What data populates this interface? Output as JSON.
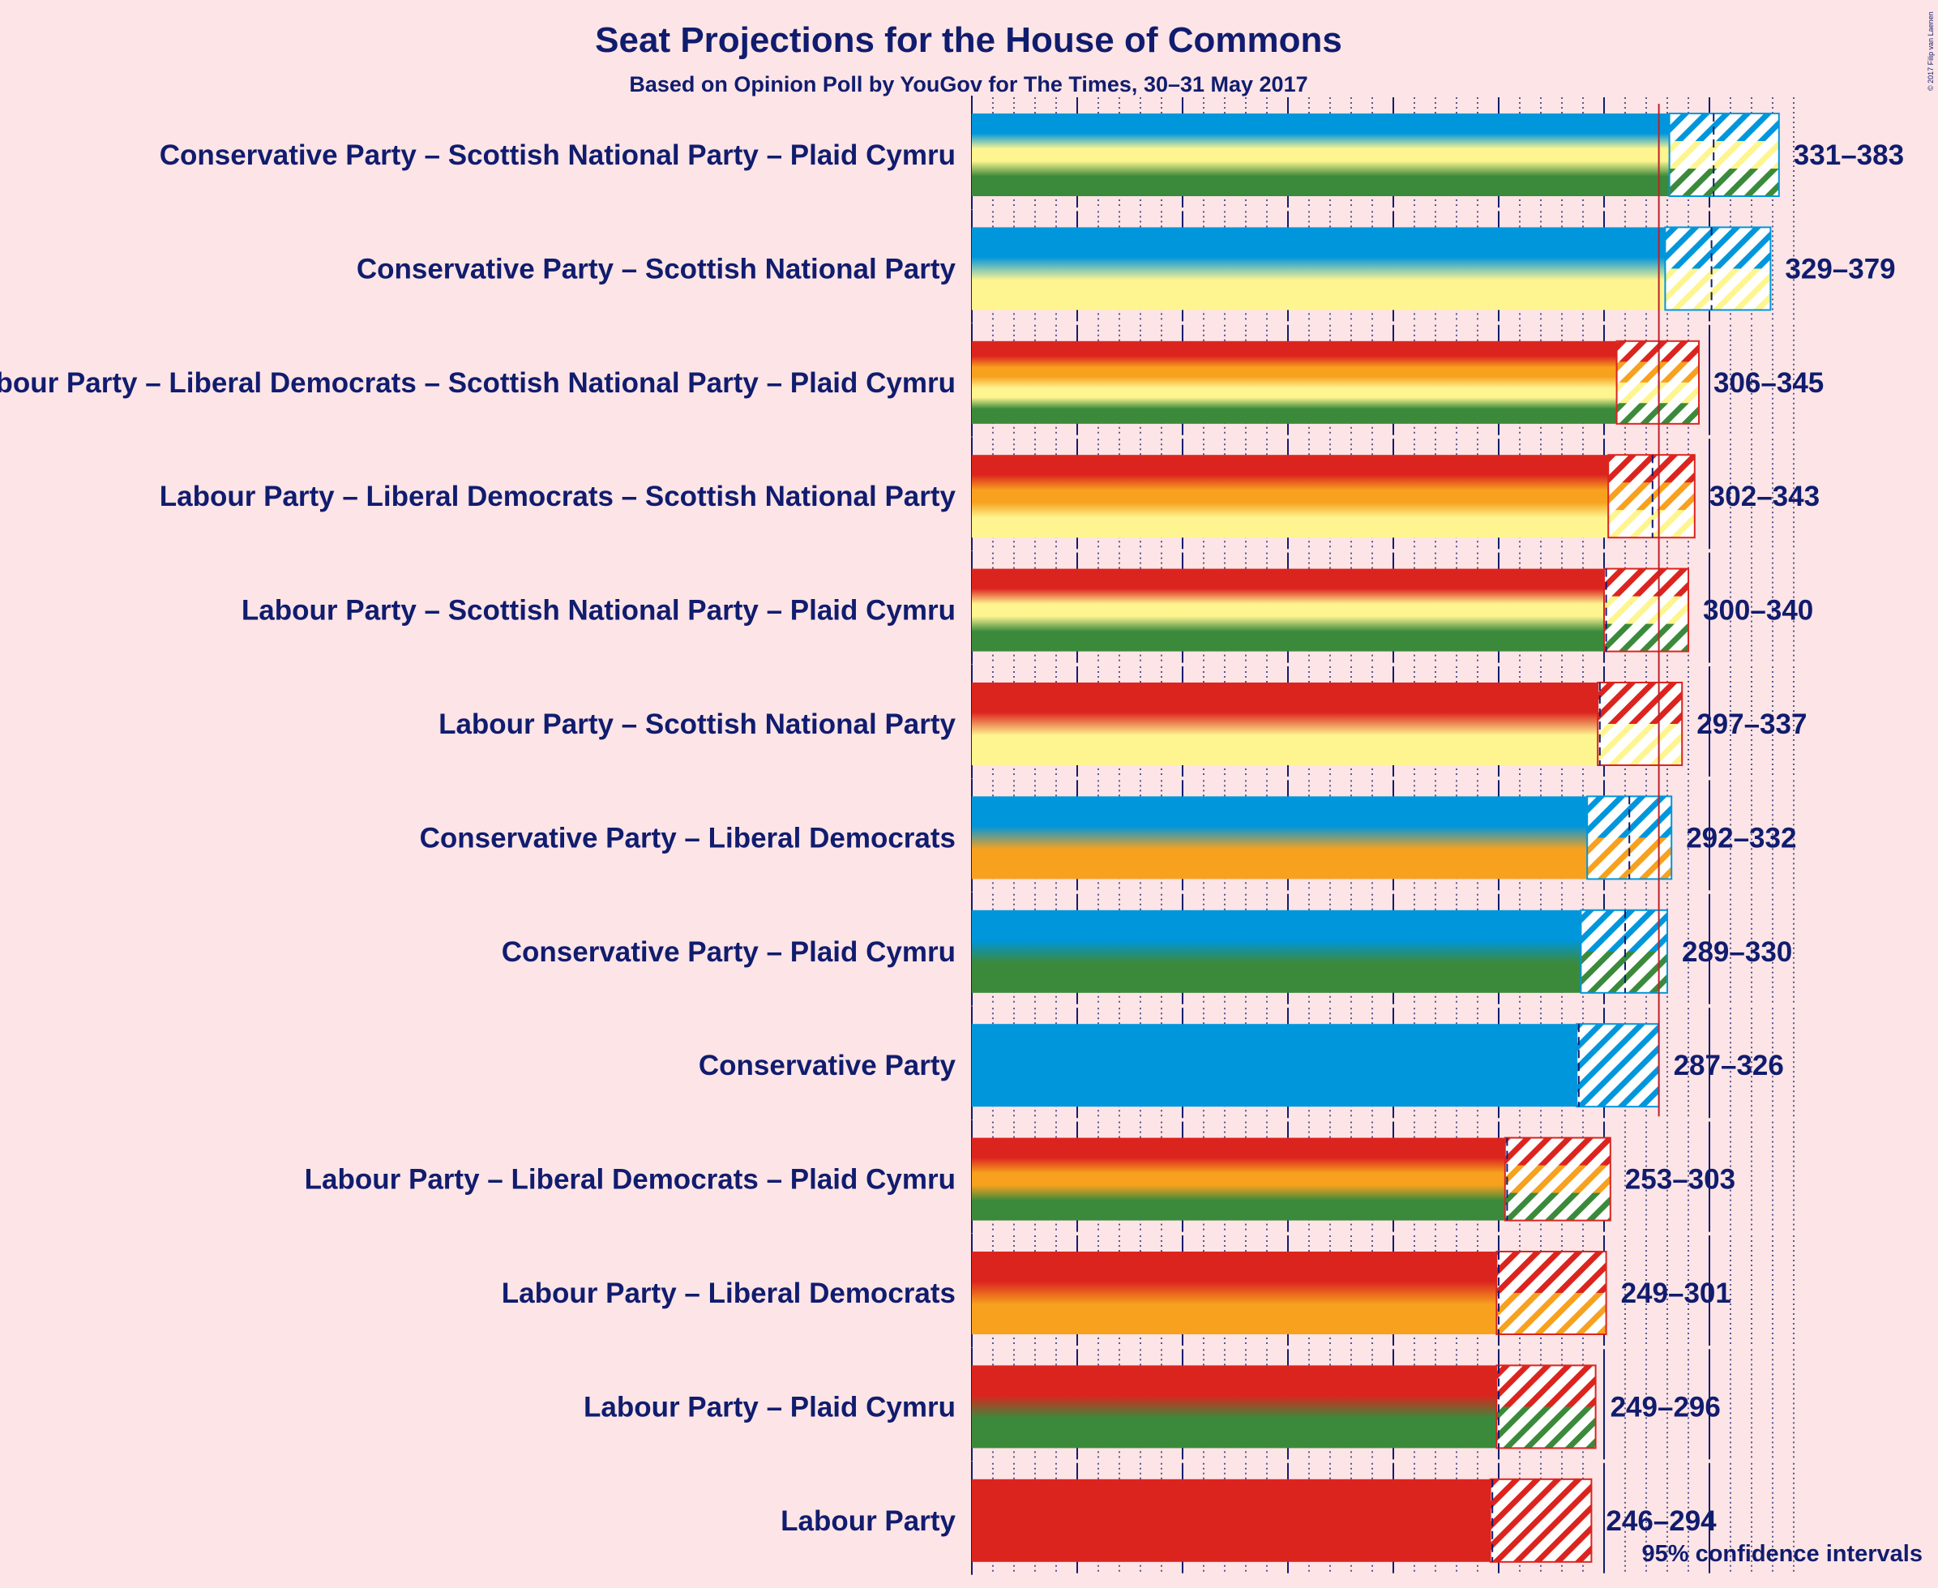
{
  "chart_data": {
    "type": "bar",
    "orientation": "horizontal",
    "title": "Seat Projections for the House of Commons",
    "subtitle": "Based on Opinion Poll by YouGov for The Times, 30–31 May 2017",
    "copyright": "© 2017 Filip van Laenen",
    "note": "95% confidence intervals",
    "majority_line": 326,
    "xlim": [
      0,
      390
    ],
    "grid": true,
    "colors": {
      "Conservative Party": "#0096dc",
      "Labour Party": "#dc241f",
      "Liberal Democrats": "#f7a11f",
      "Scottish National Party": "#fef590",
      "Plaid Cymru": "#3b8a3b",
      "text": "#101c6e",
      "background": "#fde4e6",
      "majority_line": "#c0202a"
    },
    "rows": [
      {
        "label": "Conservative Party – Scottish National Party – Plaid Cymru",
        "parties": [
          "Conservative Party",
          "Scottish National Party",
          "Plaid Cymru"
        ],
        "low": 331,
        "median": 352,
        "high": 383,
        "range_label": "331–383"
      },
      {
        "label": "Conservative Party – Scottish National Party",
        "parties": [
          "Conservative Party",
          "Scottish National Party"
        ],
        "low": 329,
        "median": 351,
        "high": 379,
        "range_label": "329–379"
      },
      {
        "label": "Labour Party – Liberal Democrats – Scottish National Party – Plaid Cymru",
        "parties": [
          "Labour Party",
          "Liberal Democrats",
          "Scottish National Party",
          "Plaid Cymru"
        ],
        "low": 306,
        "median": 326,
        "high": 345,
        "range_label": "306–345"
      },
      {
        "label": "Labour Party – Liberal Democrats – Scottish National Party",
        "parties": [
          "Labour Party",
          "Liberal Democrats",
          "Scottish National Party"
        ],
        "low": 302,
        "median": 323,
        "high": 343,
        "range_label": "302–343"
      },
      {
        "label": "Labour Party – Scottish National Party – Plaid Cymru",
        "parties": [
          "Labour Party",
          "Scottish National Party",
          "Plaid Cymru"
        ],
        "low": 300,
        "median": 301,
        "high": 340,
        "range_label": "300–340"
      },
      {
        "label": "Labour Party – Scottish National Party",
        "parties": [
          "Labour Party",
          "Scottish National Party"
        ],
        "low": 297,
        "median": 298,
        "high": 337,
        "range_label": "297–337"
      },
      {
        "label": "Conservative Party – Liberal Democrats",
        "parties": [
          "Conservative Party",
          "Liberal Democrats"
        ],
        "low": 292,
        "median": 312,
        "high": 332,
        "range_label": "292–332"
      },
      {
        "label": "Conservative Party – Plaid Cymru",
        "parties": [
          "Conservative Party",
          "Plaid Cymru"
        ],
        "low": 289,
        "median": 310,
        "high": 330,
        "range_label": "289–330"
      },
      {
        "label": "Conservative Party",
        "parties": [
          "Conservative Party"
        ],
        "low": 287,
        "median": 288,
        "high": 326,
        "range_label": "287–326"
      },
      {
        "label": "Labour Party – Liberal Democrats – Plaid Cymru",
        "parties": [
          "Labour Party",
          "Liberal Democrats",
          "Plaid Cymru"
        ],
        "low": 253,
        "median": 254,
        "high": 303,
        "range_label": "253–303"
      },
      {
        "label": "Labour Party – Liberal Democrats",
        "parties": [
          "Labour Party",
          "Liberal Democrats"
        ],
        "low": 249,
        "median": 250,
        "high": 301,
        "range_label": "249–301"
      },
      {
        "label": "Labour Party – Plaid Cymru",
        "parties": [
          "Labour Party",
          "Plaid Cymru"
        ],
        "low": 249,
        "median": 250,
        "high": 296,
        "range_label": "249–296"
      },
      {
        "label": "Labour Party",
        "parties": [
          "Labour Party"
        ],
        "low": 246,
        "median": 247,
        "high": 294,
        "range_label": "246–294"
      }
    ]
  }
}
